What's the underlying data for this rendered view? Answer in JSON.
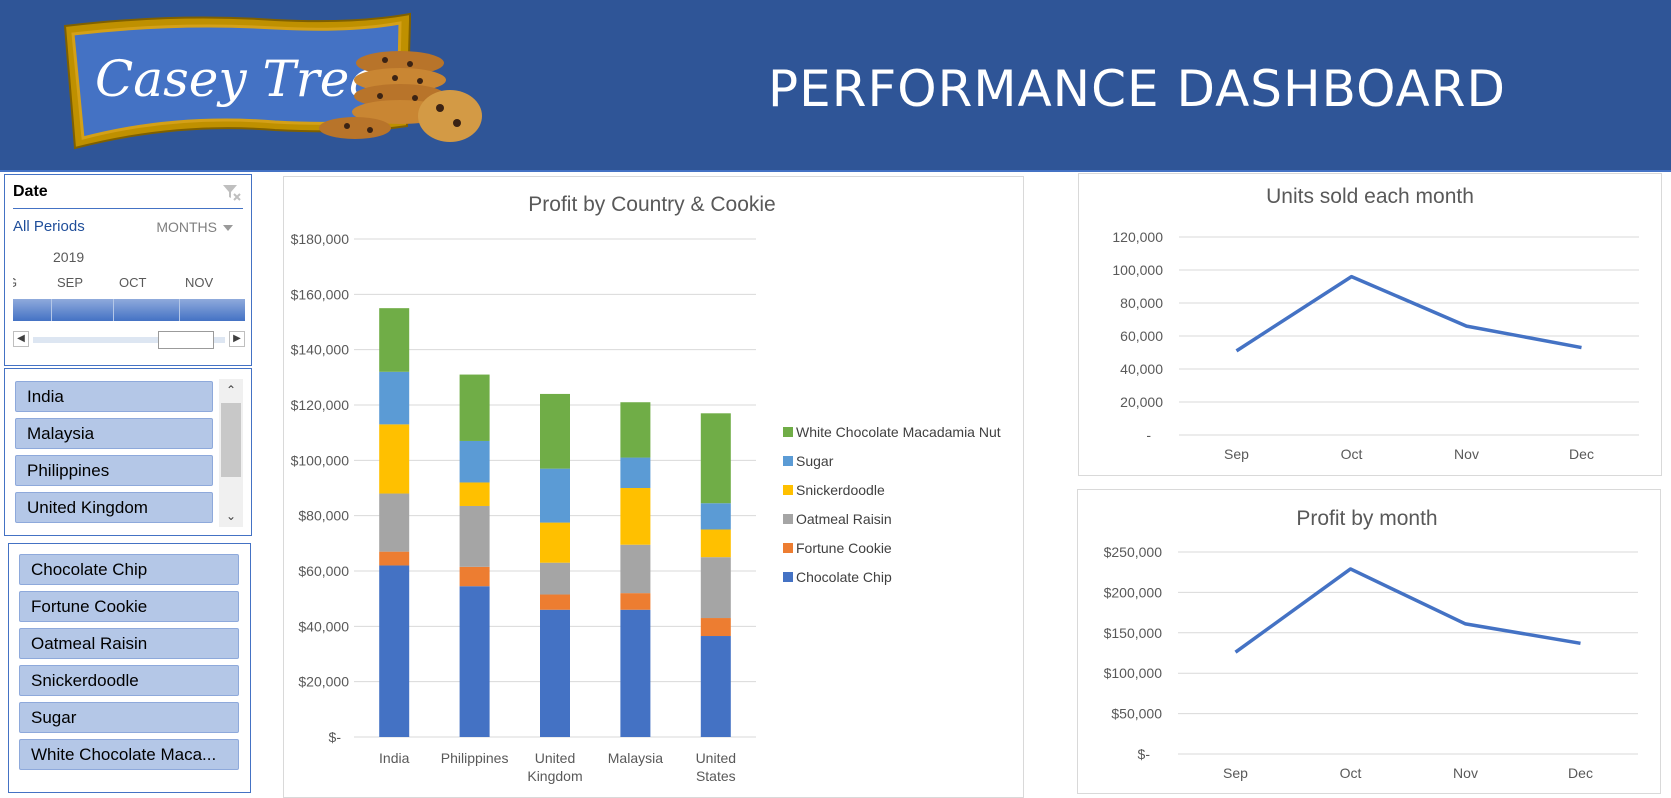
{
  "header": {
    "logo_text": "Casey Treats",
    "title": "PERFORMANCE DASHBOARD"
  },
  "date_slicer": {
    "title": "Date",
    "all_periods": "All Periods",
    "level": "MONTHS",
    "year": "2019",
    "months": [
      "G",
      "SEP",
      "OCT",
      "NOV"
    ]
  },
  "country_slicer": {
    "items": [
      "India",
      "Malaysia",
      "Philippines",
      "United Kingdom"
    ]
  },
  "cookie_slicer": {
    "items": [
      "Chocolate Chip",
      "Fortune Cookie",
      "Oatmeal Raisin",
      "Snickerdoodle",
      "Sugar",
      "White Chocolate Maca..."
    ]
  },
  "colors": {
    "header_bg": "#2f5597",
    "chocolate_chip": "#4472c4",
    "fortune_cookie": "#ed7d31",
    "oatmeal_raisin": "#a5a5a5",
    "snickerdoodle": "#ffc000",
    "sugar": "#5b9bd5",
    "white_chocolate": "#70ad47",
    "line": "#4472c4"
  },
  "chart_data": [
    {
      "type": "bar",
      "stacked": true,
      "title": "Profit by Country & Cookie",
      "categories": [
        "India",
        "Philippines",
        "United Kingdom",
        "Malaysia",
        "United States"
      ],
      "category_labels": [
        [
          "India"
        ],
        [
          "Philippines"
        ],
        [
          "United",
          "Kingdom"
        ],
        [
          "Malaysia"
        ],
        [
          "United",
          "States"
        ]
      ],
      "y_ticks": [
        "$-",
        "$20,000",
        "$40,000",
        "$60,000",
        "$80,000",
        "$100,000",
        "$120,000",
        "$140,000",
        "$160,000",
        "$180,000"
      ],
      "ylim": [
        0,
        180000
      ],
      "legend_position": "right",
      "grid": true,
      "series": [
        {
          "name": "Chocolate Chip",
          "color": "#4472c4",
          "values": [
            62000,
            54500,
            46000,
            46000,
            36500
          ]
        },
        {
          "name": "Fortune Cookie",
          "color": "#ed7d31",
          "values": [
            5000,
            7000,
            5500,
            6000,
            6500
          ]
        },
        {
          "name": "Oatmeal Raisin",
          "color": "#a5a5a5",
          "values": [
            21000,
            22000,
            11500,
            17500,
            22000
          ]
        },
        {
          "name": "Snickerdoodle",
          "color": "#ffc000",
          "values": [
            25000,
            8500,
            14500,
            20500,
            10000
          ]
        },
        {
          "name": "Sugar",
          "color": "#5b9bd5",
          "values": [
            19000,
            15000,
            19500,
            11000,
            9500
          ]
        },
        {
          "name": "White Chocolate Macadamia Nut",
          "color": "#70ad47",
          "values": [
            23000,
            24000,
            27000,
            20000,
            32500
          ]
        }
      ]
    },
    {
      "type": "line",
      "title": "Units sold each month",
      "categories": [
        "Sep",
        "Oct",
        "Nov",
        "Dec"
      ],
      "y_ticks": [
        "-",
        "20,000",
        "40,000",
        "60,000",
        "80,000",
        "100,000",
        "120,000"
      ],
      "ylim": [
        0,
        120000
      ],
      "grid": true,
      "series": [
        {
          "values": [
            51000,
            96000,
            66000,
            53000
          ],
          "color": "#4472c4"
        }
      ]
    },
    {
      "type": "line",
      "title": "Profit by month",
      "categories": [
        "Sep",
        "Oct",
        "Nov",
        "Dec"
      ],
      "y_ticks": [
        "$-",
        "$50,000",
        "$100,000",
        "$150,000",
        "$200,000",
        "$250,000"
      ],
      "ylim": [
        0,
        250000
      ],
      "grid": true,
      "series": [
        {
          "values": [
            126000,
            229000,
            161000,
            137000
          ],
          "color": "#4472c4"
        }
      ]
    }
  ]
}
